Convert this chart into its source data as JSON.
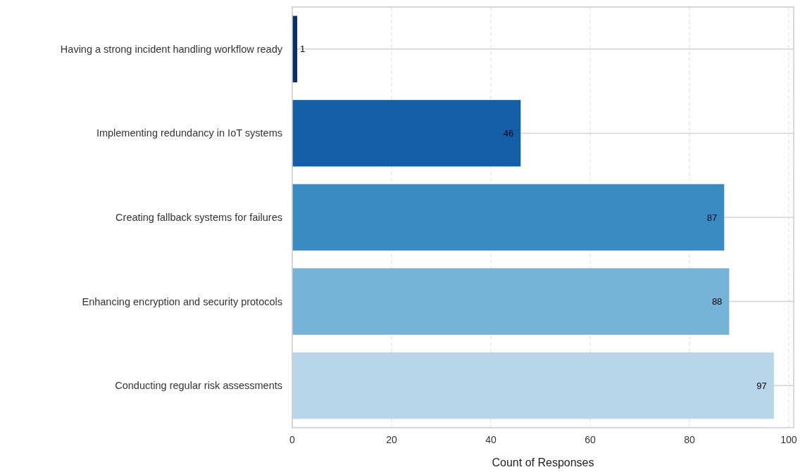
{
  "chart_data": {
    "type": "bar",
    "orientation": "horizontal",
    "xlabel": "Count of Responses",
    "categories": [
      "Having a strong incident handling workflow ready",
      "Implementing redundancy in IoT systems",
      "Creating fallback systems for failures",
      "Enhancing encryption and security protocols",
      "Conducting regular risk assessments"
    ],
    "values": [
      1,
      46,
      87,
      88,
      97
    ],
    "colors": [
      "#08306b",
      "#135ea6",
      "#3a8bc2",
      "#74b2d8",
      "#b8d5ea"
    ],
    "xlim": [
      0,
      101
    ],
    "xticks": [
      0,
      20,
      40,
      60,
      80,
      100
    ],
    "grid": true,
    "data_labels": true
  }
}
